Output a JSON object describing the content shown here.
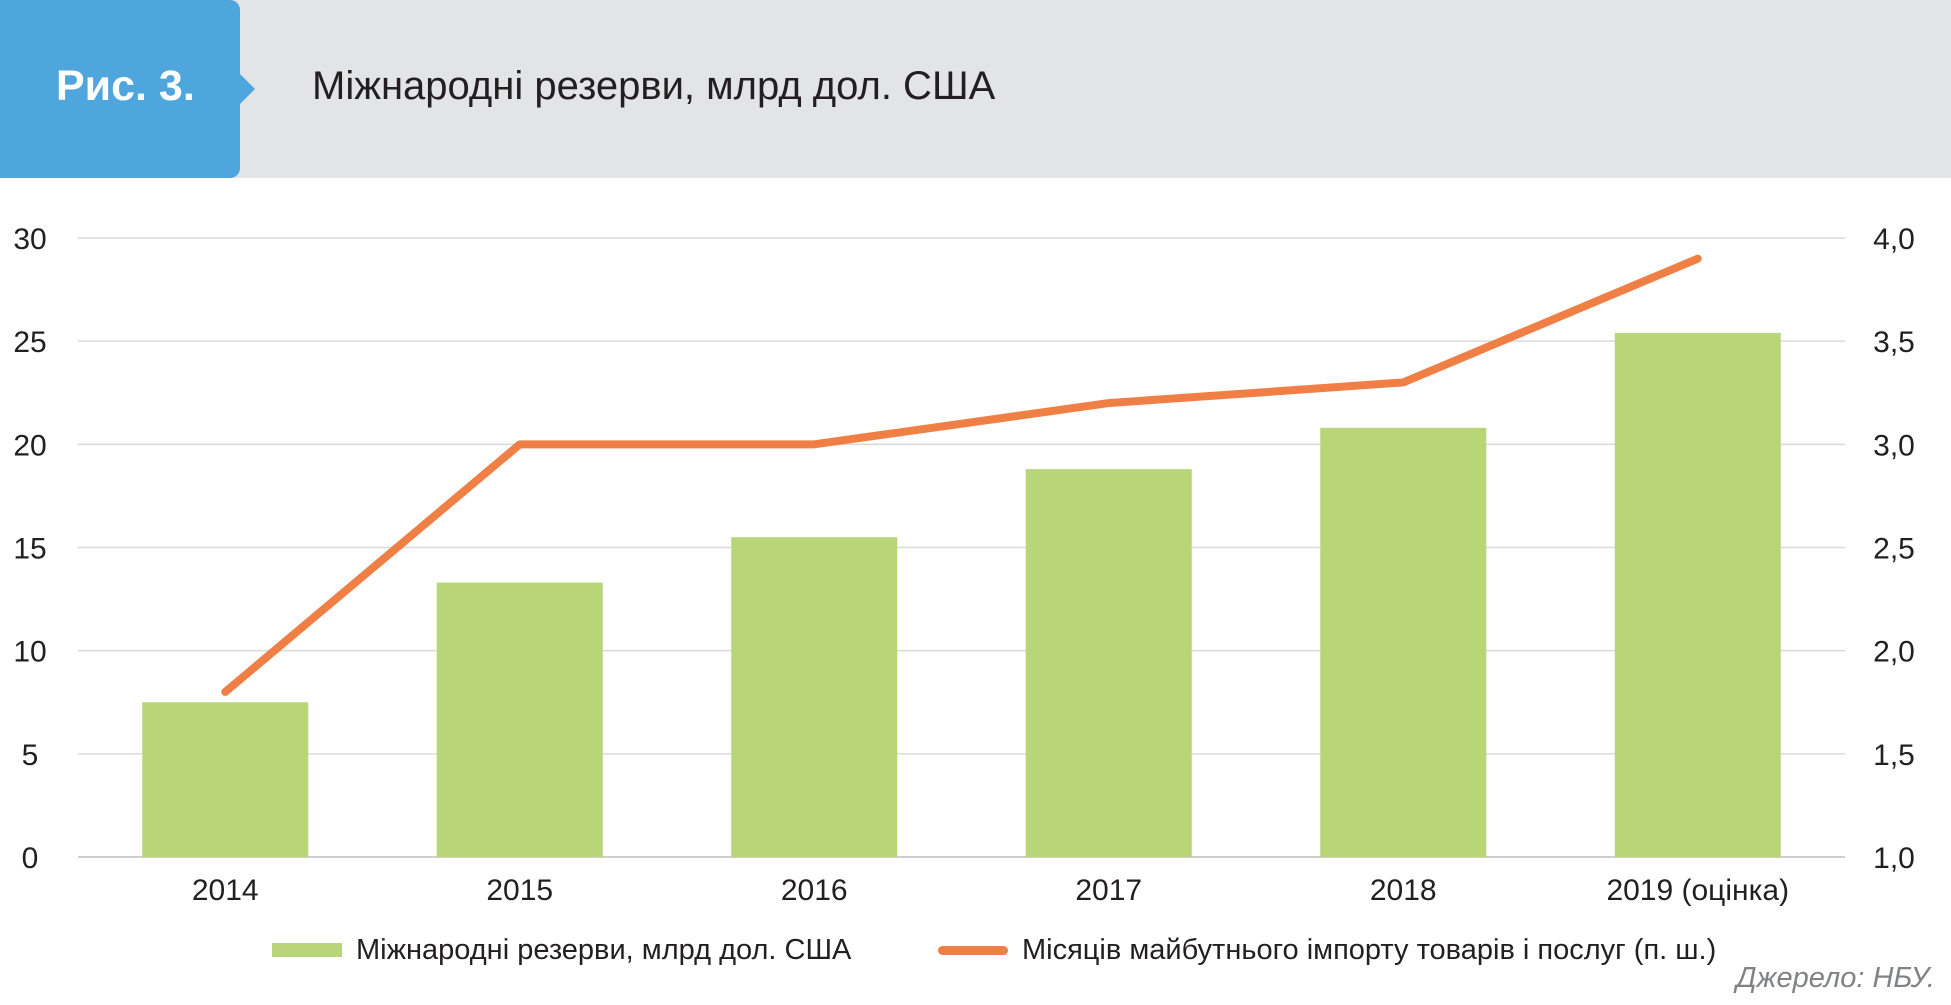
{
  "header": {
    "figure_label": "Рис. 3.",
    "title": "Міжнародні резерви, млрд дол. США"
  },
  "chart_data": {
    "type": "bar",
    "categories": [
      "2014",
      "2015",
      "2016",
      "2017",
      "2018",
      "2019 (оцінка)"
    ],
    "series": [
      {
        "name": "Міжнародні резерви, млрд дол. США",
        "type": "bar",
        "axis": "left",
        "color": "#b8d678",
        "values": [
          7.5,
          13.3,
          15.5,
          18.8,
          20.8,
          25.4
        ]
      },
      {
        "name": "Місяців майбутнього імпорту товарів і послуг  (п. ш.)",
        "type": "line",
        "axis": "right",
        "color": "#f07f45",
        "values": [
          1.8,
          3.0,
          3.0,
          3.2,
          3.3,
          3.9
        ]
      }
    ],
    "y_left": {
      "min": 0,
      "max": 30,
      "ticks": [
        "0",
        "5",
        "10",
        "15",
        "20",
        "25",
        "30"
      ]
    },
    "y_right": {
      "min": 1.0,
      "max": 4.0,
      "ticks": [
        "1,0",
        "1,5",
        "2,0",
        "2,5",
        "3,0",
        "3,5",
        "4,0"
      ]
    },
    "grid": true,
    "legend_position": "bottom"
  },
  "source": "Джерело: НБУ.",
  "colors": {
    "header_bg": "#e3e4e6",
    "tab_bg": "#4ea6dc",
    "bar": "#b8d678",
    "line": "#f07f45",
    "grid": "#d9d9d9"
  }
}
